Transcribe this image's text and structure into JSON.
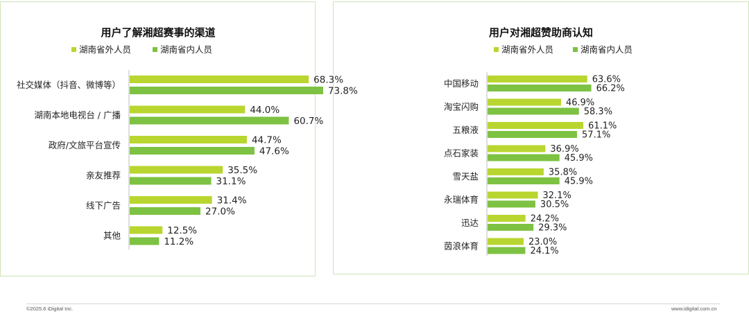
{
  "colors": {
    "outside": "#b8d62f",
    "inside": "#7dc242",
    "text": "#222222",
    "axis": "#bbbbbb",
    "panel_border": "#cfe3b6"
  },
  "legend": {
    "outside_label": "湖南省外人员",
    "inside_label": "湖南省内人员"
  },
  "chart_data": [
    {
      "type": "bar",
      "orientation": "horizontal",
      "title": "用户了解湘超赛事的渠道",
      "categories": [
        "社交媒体（抖音、微博等）",
        "湖南本地电视台 / 广播",
        "政府/文旅平台宣传",
        "亲友推荐",
        "线下广告",
        "其他"
      ],
      "series": [
        {
          "name": "湖南省外人员",
          "values": [
            68.3,
            44.0,
            44.7,
            35.5,
            31.4,
            12.5
          ]
        },
        {
          "name": "湖南省内人员",
          "values": [
            73.8,
            60.7,
            47.6,
            31.1,
            27.0,
            11.2
          ]
        }
      ],
      "value_labels": [
        [
          "68.3%",
          "44.0%",
          "44.7%",
          "35.5%",
          "31.4%",
          "12.5%"
        ],
        [
          "73.8%",
          "60.7%",
          "47.6%",
          "31.1%",
          "27.0%",
          "11.2%"
        ]
      ],
      "legend_position": "top",
      "grid": false,
      "xlim": [
        0,
        100
      ]
    },
    {
      "type": "bar",
      "orientation": "horizontal",
      "title": "用户对湘超赞助商认知",
      "categories": [
        "中国移动",
        "淘宝闪购",
        "五粮液",
        "点石家装",
        "雪天盐",
        "永瑞体育",
        "迅达",
        "茵浪体育"
      ],
      "series": [
        {
          "name": "湖南省外人员",
          "values": [
            63.6,
            46.9,
            61.1,
            36.9,
            35.8,
            32.1,
            24.2,
            23.0
          ]
        },
        {
          "name": "湖南省内人员",
          "values": [
            66.2,
            58.3,
            57.1,
            45.9,
            45.9,
            30.5,
            29.3,
            24.1
          ]
        }
      ],
      "value_labels": [
        [
          "63.6%",
          "46.9%",
          "61.1%",
          "36.9%",
          "35.8%",
          "32.1%",
          "24.2%",
          "23.0%"
        ],
        [
          "66.2%",
          "58.3%",
          "57.1%",
          "45.9%",
          "45.9%",
          "30.5%",
          "29.3%",
          "24.1%"
        ]
      ],
      "legend_position": "top",
      "grid": false,
      "xlim": [
        0,
        100
      ]
    }
  ],
  "footer": {
    "copyright": "©2025.6 iDigital Inc.",
    "url": "www.idigital.com.cn"
  }
}
